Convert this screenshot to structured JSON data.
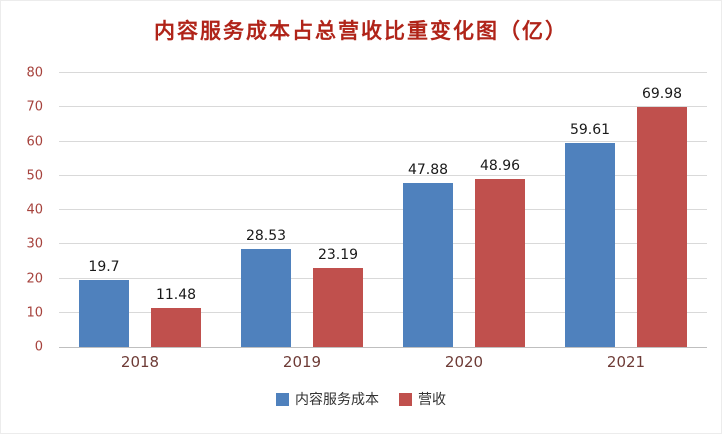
{
  "title": "内容服务成本占总营收比重变化图（亿）",
  "chart_data": {
    "type": "bar",
    "title": "内容服务成本占总营收比重变化图（亿）",
    "categories": [
      "2018",
      "2019",
      "2020",
      "2021"
    ],
    "series": [
      {
        "name": "内容服务成本",
        "color": "#4F81BD",
        "values": [
          19.7,
          28.53,
          47.88,
          59.61
        ]
      },
      {
        "name": "营收",
        "color": "#C0504D",
        "values": [
          11.48,
          23.19,
          48.96,
          69.98
        ]
      }
    ],
    "ylim": [
      0,
      80
    ],
    "yticks": [
      0,
      10,
      20,
      30,
      40,
      50,
      60,
      70,
      80
    ],
    "grid": true,
    "legend_position": "bottom"
  },
  "colors": {
    "title": "#B02419",
    "ytick_label": "#A6423C",
    "xtick_label": "#6E3B36",
    "value_label": "#1A1A1A",
    "gridline": "#D9D9D9",
    "axis_line": "#BFBFBF",
    "series_blue": "#4F81BD",
    "series_red": "#C0504D"
  }
}
